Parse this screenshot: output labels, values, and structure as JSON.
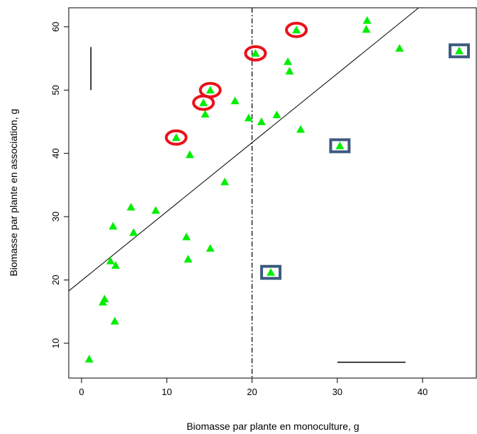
{
  "chart_data": {
    "type": "scatter",
    "xlabel": "Biomasse par plante en monoculture, g",
    "ylabel": "Biomasse par plante en association, g",
    "xlim": [
      -1.5,
      46.3
    ],
    "ylim": [
      4.5,
      63
    ],
    "xticks": [
      0,
      10,
      20,
      30,
      40
    ],
    "yticks": [
      10,
      20,
      30,
      40,
      50,
      60
    ],
    "grid": false,
    "marker_color": "#00ee00",
    "points": [
      {
        "x": 0.9,
        "y": 7.5
      },
      {
        "x": 2.5,
        "y": 16.5
      },
      {
        "x": 2.7,
        "y": 17.0
      },
      {
        "x": 3.4,
        "y": 23.0
      },
      {
        "x": 3.7,
        "y": 28.5
      },
      {
        "x": 3.9,
        "y": 13.5
      },
      {
        "x": 4.0,
        "y": 22.3
      },
      {
        "x": 5.8,
        "y": 31.5
      },
      {
        "x": 6.1,
        "y": 27.5
      },
      {
        "x": 8.7,
        "y": 31.0
      },
      {
        "x": 11.1,
        "y": 42.5
      },
      {
        "x": 12.3,
        "y": 26.8
      },
      {
        "x": 12.5,
        "y": 23.3
      },
      {
        "x": 12.7,
        "y": 39.8
      },
      {
        "x": 14.3,
        "y": 48.0
      },
      {
        "x": 14.5,
        "y": 46.2
      },
      {
        "x": 15.1,
        "y": 50.0
      },
      {
        "x": 15.1,
        "y": 25.0
      },
      {
        "x": 16.8,
        "y": 35.5
      },
      {
        "x": 18.0,
        "y": 48.3
      },
      {
        "x": 19.6,
        "y": 45.6
      },
      {
        "x": 20.4,
        "y": 55.8
      },
      {
        "x": 21.1,
        "y": 45.0
      },
      {
        "x": 22.2,
        "y": 21.2
      },
      {
        "x": 22.9,
        "y": 46.1
      },
      {
        "x": 24.2,
        "y": 54.5
      },
      {
        "x": 24.4,
        "y": 53.0
      },
      {
        "x": 25.2,
        "y": 59.5
      },
      {
        "x": 25.7,
        "y": 43.8
      },
      {
        "x": 30.3,
        "y": 41.2
      },
      {
        "x": 33.4,
        "y": 59.6
      },
      {
        "x": 33.5,
        "y": 61.0
      },
      {
        "x": 37.3,
        "y": 56.6
      },
      {
        "x": 44.3,
        "y": 56.2
      }
    ],
    "regression_line": {
      "intercept": 19.9,
      "slope": 1.09
    },
    "vertical_line_x": 20,
    "circled_points": [
      {
        "x": 11.1,
        "y": 42.5
      },
      {
        "x": 14.3,
        "y": 48.0
      },
      {
        "x": 15.1,
        "y": 50.0
      },
      {
        "x": 20.4,
        "y": 55.8
      },
      {
        "x": 25.2,
        "y": 59.5
      }
    ],
    "boxed_points": [
      {
        "x": 22.2,
        "y": 21.2
      },
      {
        "x": 30.3,
        "y": 41.2
      },
      {
        "x": 44.3,
        "y": 56.2
      }
    ],
    "vertical_bar_segment": {
      "x": 1.1,
      "y1": 50,
      "y2": 56.8
    },
    "horizontal_bar_segment": {
      "y": 7.0,
      "x1": 30,
      "x2": 38
    },
    "circle_color": "#e8121b",
    "box_color": "#3d5a80"
  }
}
